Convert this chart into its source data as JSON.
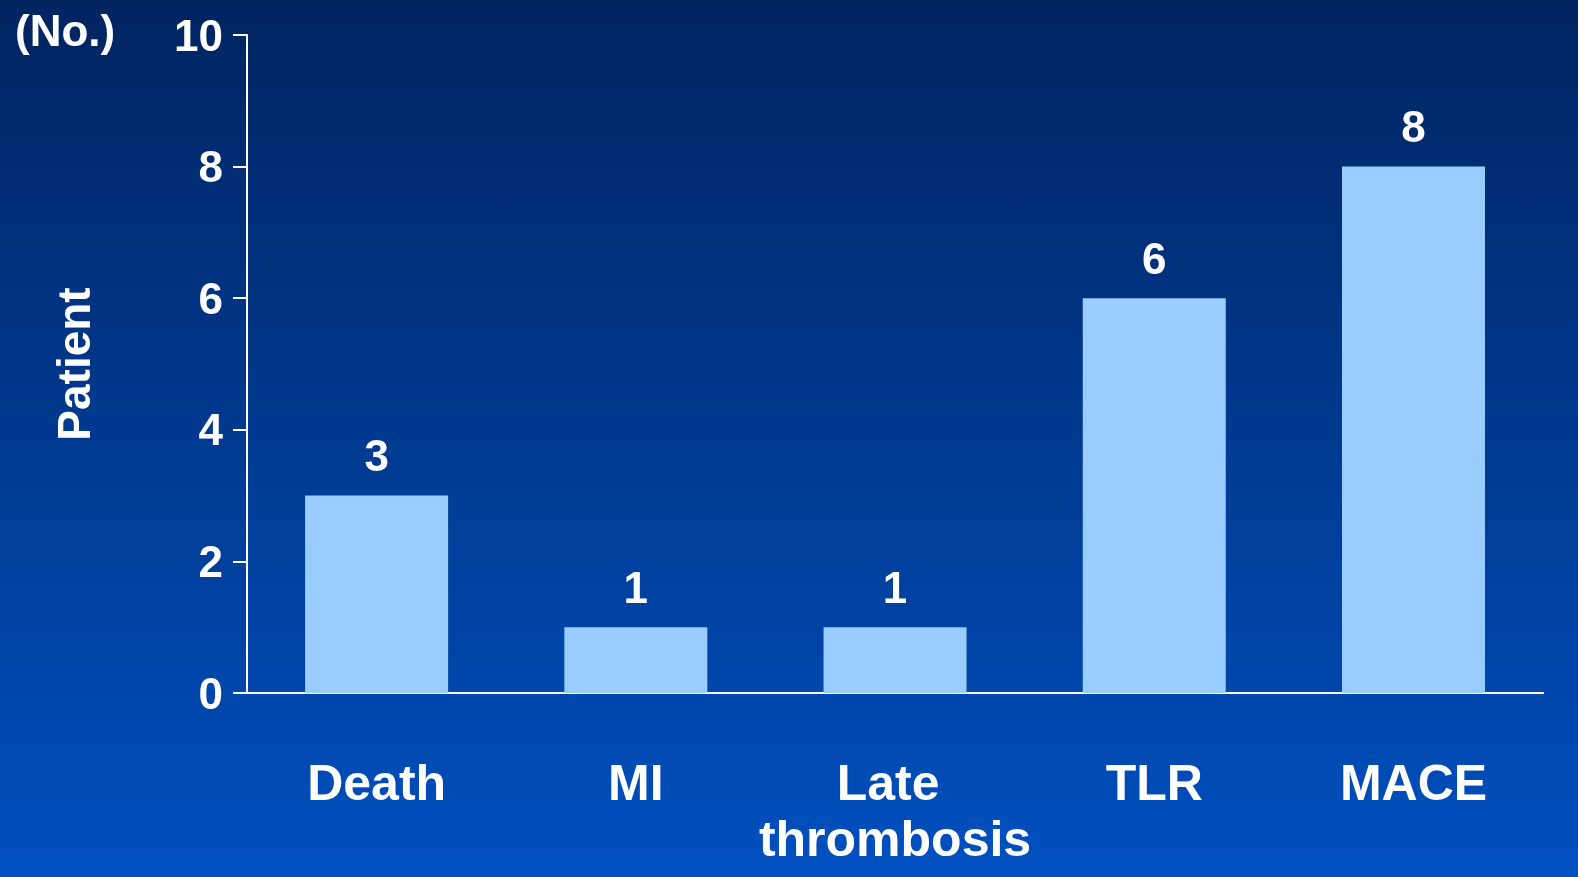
{
  "chart_data": {
    "type": "bar",
    "ylabel": "Patient",
    "annotations": [
      "(No.)"
    ],
    "categories": [
      "Death",
      "MI",
      "Late thrombosis",
      "TLR",
      "MACE"
    ],
    "values": [
      3,
      1,
      1,
      6,
      8
    ],
    "color": "#99ccff",
    "ylim": [
      0,
      10
    ],
    "yticks": [
      0,
      2,
      4,
      6,
      8,
      10
    ],
    "grid": false,
    "data_labels": true
  }
}
